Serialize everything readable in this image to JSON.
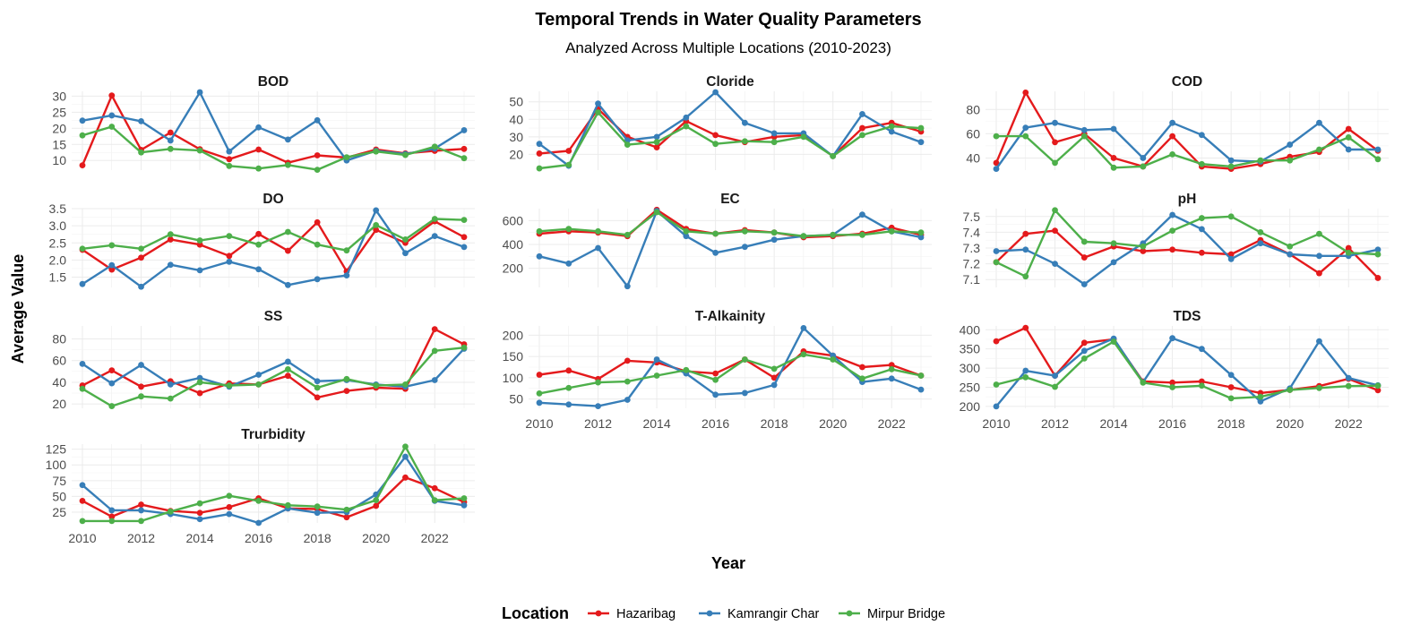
{
  "chart_data": {
    "type": "line",
    "title": "Temporal Trends in Water Quality Parameters",
    "subtitle": "Analyzed Across Multiple Locations (2010-2023)",
    "xlabel": "Year",
    "ylabel": "Average Value",
    "x": [
      2010,
      2011,
      2012,
      2013,
      2014,
      2015,
      2016,
      2017,
      2018,
      2019,
      2020,
      2021,
      2022,
      2023
    ],
    "x_ticks": [
      2010,
      2012,
      2014,
      2016,
      2018,
      2020,
      2022
    ],
    "grid": true,
    "legend": {
      "title": "Location",
      "position": "bottom",
      "entries": [
        {
          "name": "Hazaribag",
          "color": "#e41a1c"
        },
        {
          "name": "Kamrangir Char",
          "color": "#377eb8"
        },
        {
          "name": "Mirpur Bridge",
          "color": "#4daf4a"
        }
      ]
    },
    "panels": [
      {
        "title": "BOD",
        "yticks": [
          10,
          15,
          20,
          25,
          30
        ],
        "ylim": [
          7,
          31.5
        ],
        "series": [
          {
            "name": "Hazaribag",
            "values": [
              8.5,
              30.2,
              13.3,
              18.7,
              13.5,
              10.4,
              13.4,
              9.3,
              11.6,
              10.9,
              13.4,
              12.2,
              13.0,
              13.6
            ]
          },
          {
            "name": "Kamrangir Char",
            "values": [
              22.4,
              24.0,
              22.2,
              16.2,
              31.2,
              12.8,
              20.3,
              16.5,
              22.5,
              10.0,
              13.0,
              12.0,
              13.7,
              19.4
            ]
          },
          {
            "name": "Mirpur Bridge",
            "values": [
              17.8,
              20.5,
              12.5,
              13.6,
              13.1,
              8.3,
              7.5,
              8.6,
              7.1,
              11.0,
              12.8,
              11.7,
              14.3,
              10.7
            ]
          }
        ]
      },
      {
        "title": "Cloride",
        "yticks": [
          20,
          30,
          40,
          50
        ],
        "ylim": [
          11,
          56
        ],
        "series": [
          {
            "name": "Hazaribag",
            "values": [
              20.5,
              22.0,
              46.0,
              30.0,
              24.0,
              39.0,
              31.0,
              27.0,
              30.0,
              31.0,
              19.0,
              35.0,
              38.0,
              33.0
            ]
          },
          {
            "name": "Kamrangir Char",
            "values": [
              26.0,
              13.5,
              49.0,
              28.0,
              30.0,
              41.0,
              55.5,
              38.0,
              32.0,
              32.0,
              19.0,
              43.0,
              33.0,
              27.0
            ]
          },
          {
            "name": "Mirpur Bridge",
            "values": [
              12.0,
              14.0,
              44.0,
              25.5,
              27.0,
              36.0,
              26.0,
              27.5,
              27.0,
              30.0,
              19.0,
              31.0,
              36.0,
              35.0
            ]
          }
        ]
      },
      {
        "title": "COD",
        "yticks": [
          40,
          60,
          80
        ],
        "ylim": [
          30,
          95
        ],
        "series": [
          {
            "name": "Hazaribag",
            "values": [
              36.0,
              94.0,
              53.0,
              60.0,
              40.0,
              33.0,
              58.0,
              33.0,
              31.0,
              35.0,
              41.0,
              45.0,
              64.0,
              46.0
            ]
          },
          {
            "name": "Kamrangir Char",
            "values": [
              31.0,
              65.0,
              69.0,
              63.0,
              64.0,
              40.0,
              69.0,
              59.0,
              38.0,
              37.0,
              51.0,
              69.0,
              47.0,
              47.0
            ]
          },
          {
            "name": "Mirpur Bridge",
            "values": [
              58.0,
              58.0,
              36.0,
              58.0,
              32.0,
              33.0,
              43.0,
              35.0,
              33.0,
              38.0,
              38.0,
              47.0,
              57.0,
              39.0
            ]
          }
        ]
      },
      {
        "title": "DO",
        "yticks": [
          1.5,
          2.0,
          2.5,
          3.0,
          3.5
        ],
        "ylim": [
          1.2,
          3.5
        ],
        "series": [
          {
            "name": "Hazaribag",
            "values": [
              2.3,
              1.72,
              2.07,
              2.6,
              2.45,
              2.12,
              2.76,
              2.27,
              3.1,
              1.67,
              2.88,
              2.5,
              3.13,
              2.67
            ]
          },
          {
            "name": "Kamrangir Char",
            "values": [
              1.3,
              1.85,
              1.22,
              1.86,
              1.7,
              1.95,
              1.73,
              1.27,
              1.44,
              1.55,
              3.45,
              2.2,
              2.7,
              2.38
            ]
          },
          {
            "name": "Mirpur Bridge",
            "values": [
              2.33,
              2.43,
              2.33,
              2.75,
              2.57,
              2.7,
              2.45,
              2.82,
              2.45,
              2.28,
              3.02,
              2.6,
              3.2,
              3.17
            ]
          }
        ]
      },
      {
        "title": "EC",
        "yticks": [
          200,
          400,
          600
        ],
        "ylim": [
          40,
          700
        ],
        "series": [
          {
            "name": "Hazaribag",
            "values": [
              490.0,
              510.0,
              500.0,
              470.0,
              690.0,
              530.0,
              490.0,
              520.0,
              500.0,
              460.0,
              470.0,
              490.0,
              540.0,
              480.0
            ]
          },
          {
            "name": "Kamrangir Char",
            "values": [
              300.0,
              240.0,
              370.0,
              50.0,
              680.0,
              470.0,
              330.0,
              380.0,
              440.0,
              470.0,
              480.0,
              650.0,
              510.0,
              460.0
            ]
          },
          {
            "name": "Mirpur Bridge",
            "values": [
              510.0,
              530.0,
              510.0,
              480.0,
              670.0,
              510.0,
              490.0,
              510.0,
              500.0,
              470.0,
              480.0,
              480.0,
              510.0,
              500.0
            ]
          }
        ]
      },
      {
        "title": "pH",
        "yticks": [
          7.1,
          7.2,
          7.3,
          7.4,
          7.5
        ],
        "ylim": [
          7.05,
          7.55
        ],
        "series": [
          {
            "name": "Hazaribag",
            "values": [
              7.21,
              7.39,
              7.41,
              7.24,
              7.31,
              7.28,
              7.29,
              7.27,
              7.26,
              7.35,
              7.26,
              7.14,
              7.3,
              7.11
            ]
          },
          {
            "name": "Kamrangir Char",
            "values": [
              7.28,
              7.29,
              7.2,
              7.07,
              7.21,
              7.33,
              7.51,
              7.42,
              7.23,
              7.33,
              7.26,
              7.25,
              7.25,
              7.29
            ]
          },
          {
            "name": "Mirpur Bridge",
            "values": [
              7.21,
              7.12,
              7.54,
              7.34,
              7.33,
              7.31,
              7.41,
              7.49,
              7.5,
              7.4,
              7.31,
              7.39,
              7.27,
              7.26
            ]
          }
        ]
      },
      {
        "title": "SS",
        "yticks": [
          20,
          40,
          60,
          80
        ],
        "ylim": [
          16,
          92
        ],
        "series": [
          {
            "name": "Hazaribag",
            "values": [
              37.0,
              51.0,
              36.0,
              41.0,
              30.0,
              39.0,
              38.0,
              46.0,
              26.0,
              32.0,
              35.0,
              34.0,
              89.0,
              75.0
            ]
          },
          {
            "name": "Kamrangir Char",
            "values": [
              57.0,
              39.0,
              56.0,
              38.0,
              44.0,
              36.0,
              47.0,
              59.0,
              41.0,
              42.0,
              38.0,
              36.0,
              42.0,
              71.0
            ]
          },
          {
            "name": "Mirpur Bridge",
            "values": [
              34.0,
              18.0,
              27.0,
              25.0,
              40.0,
              37.0,
              38.0,
              52.0,
              35.0,
              43.0,
              37.0,
              38.0,
              69.0,
              72.0
            ]
          }
        ]
      },
      {
        "title": "T-Alkainity",
        "yticks": [
          50,
          100,
          150,
          200
        ],
        "ylim": [
          28,
          222
        ],
        "series": [
          {
            "name": "Hazaribag",
            "values": [
              107.0,
              117.0,
              97.0,
              140.0,
              136.0,
              115.0,
              110.0,
              143.0,
              100.0,
              162.0,
              152.0,
              125.0,
              130.0,
              105.0
            ]
          },
          {
            "name": "Kamrangir Char",
            "values": [
              41.0,
              37.0,
              33.0,
              48.0,
              143.0,
              110.0,
              60.0,
              64.0,
              83.0,
              217.0,
              152.0,
              90.0,
              98.0,
              72.0
            ]
          },
          {
            "name": "Mirpur Bridge",
            "values": [
              63.0,
              76.0,
              89.0,
              91.0,
              105.0,
              118.0,
              95.0,
              143.0,
              121.0,
              155.0,
              143.0,
              98.0,
              120.0,
              105.0
            ]
          }
        ]
      },
      {
        "title": "TDS",
        "yticks": [
          200,
          250,
          300,
          350,
          400
        ],
        "ylim": [
          195,
          410
        ],
        "series": [
          {
            "name": "Hazaribag",
            "values": [
              370.0,
              405.0,
              280.0,
              366.0,
              375.0,
              265.0,
              262.0,
              265.0,
              250.0,
              235.0,
              243.0,
              253.0,
              272.0,
              242.0
            ]
          },
          {
            "name": "Kamrangir Char",
            "values": [
              200.0,
              293.0,
              280.0,
              345.0,
              377.0,
              263.0,
              378.0,
              350.0,
              282.0,
              213.0,
              247.0,
              370.0,
              274.0,
              255.0
            ]
          },
          {
            "name": "Mirpur Bridge",
            "values": [
              257.0,
              276.0,
              251.0,
              325.0,
              369.0,
              262.0,
              250.0,
              254.0,
              221.0,
              225.0,
              243.0,
              248.0,
              253.0,
              254.0
            ]
          }
        ]
      },
      {
        "title": "Trurbidity",
        "yticks": [
          25,
          50,
          75,
          100,
          125
        ],
        "ylim": [
          8,
          133
        ],
        "series": [
          {
            "name": "Hazaribag",
            "values": [
              43.0,
              18.0,
              37.0,
              27.0,
              24.0,
              33.0,
              47.0,
              31.0,
              30.0,
              17.0,
              35.0,
              80.0,
              63.0,
              41.0
            ]
          },
          {
            "name": "Kamrangir Char",
            "values": [
              68.0,
              28.0,
              28.0,
              22.0,
              14.0,
              22.0,
              8.0,
              31.0,
              24.0,
              25.0,
              53.0,
              113.0,
              43.0,
              36.0
            ]
          },
          {
            "name": "Mirpur Bridge",
            "values": [
              11.0,
              11.0,
              11.0,
              26.0,
              39.0,
              51.0,
              43.0,
              36.0,
              34.0,
              29.0,
              44.0,
              129.0,
              44.0,
              47.0
            ]
          }
        ]
      }
    ]
  }
}
